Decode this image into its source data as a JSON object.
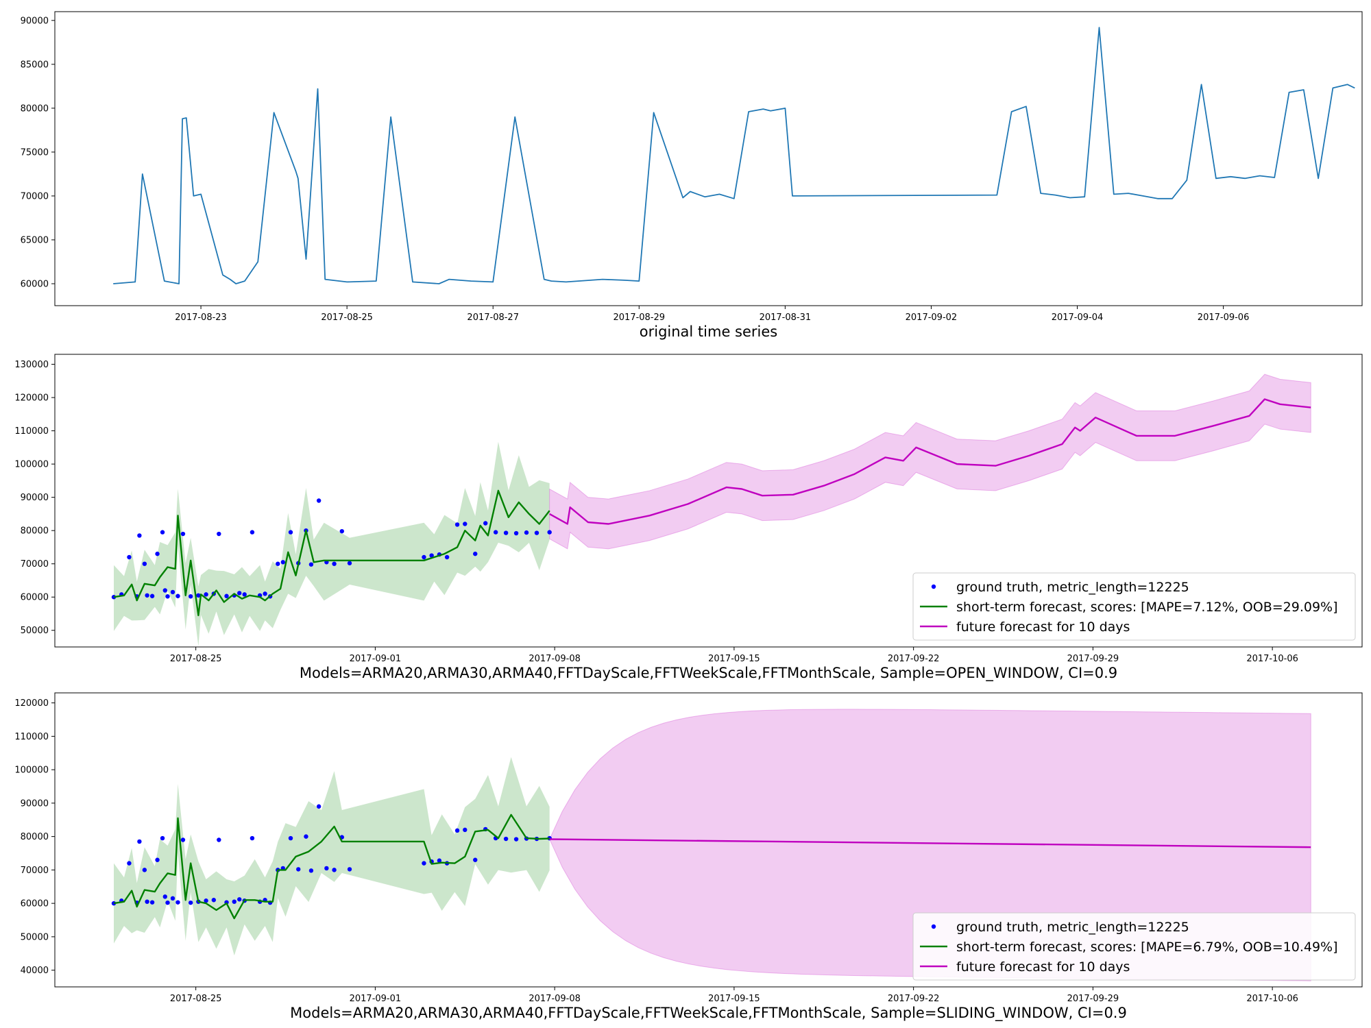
{
  "chart_data": [
    {
      "type": "line",
      "xlabel": "original time series",
      "ylabel": "",
      "ylim": [
        57500,
        91000
      ],
      "xlim": [
        "2017-08-21 00:00",
        "2017-09-07 21:36"
      ],
      "yticks": [
        60000,
        65000,
        70000,
        75000,
        80000,
        85000,
        90000
      ],
      "ytick_labels": [
        "60000",
        "65000",
        "70000",
        "75000",
        "80000",
        "85000",
        "90000"
      ],
      "xticks": [
        "2017-08-23",
        "2017-08-25",
        "2017-08-27",
        "2017-08-29",
        "2017-08-31",
        "2017-09-02",
        "2017-09-04",
        "2017-09-06"
      ],
      "series": [
        {
          "color": "#1f77b4",
          "x": [
            "2017-08-21 19:12",
            "2017-08-22 02:24",
            "2017-08-22 04:48",
            "2017-08-22 12:00",
            "2017-08-22 16:48",
            "2017-08-22 17:55",
            "2017-08-22 19:12",
            "2017-08-22 21:36",
            "2017-08-23 00:00",
            "2017-08-23 07:12",
            "2017-08-23 09:36",
            "2017-08-23 11:31",
            "2017-08-23 14:24",
            "2017-08-23 18:43",
            "2017-08-24 00:00",
            "2017-08-24 07:12",
            "2017-08-24 07:55",
            "2017-08-24 10:34",
            "2017-08-24 14:24",
            "2017-08-24 16:48",
            "2017-08-25 00:00",
            "2017-08-25 09:36",
            "2017-08-25 14:24",
            "2017-08-25 21:36",
            "2017-08-26 06:14",
            "2017-08-26 09:36",
            "2017-08-26 16:48",
            "2017-08-27 00:00",
            "2017-08-27 07:12",
            "2017-08-27 16:48",
            "2017-08-27 19:12",
            "2017-08-28 00:00",
            "2017-08-28 12:00",
            "2017-08-28 19:12",
            "2017-08-29 00:00",
            "2017-08-29 04:48",
            "2017-08-29 14:24",
            "2017-08-29 16:48",
            "2017-08-29 21:36",
            "2017-08-30 02:24",
            "2017-08-30 07:12",
            "2017-08-30 12:00",
            "2017-08-30 16:48",
            "2017-08-30 19:12",
            "2017-08-31 00:00",
            "2017-08-31 02:24",
            "2017-09-02 21:36",
            "2017-09-03 02:24",
            "2017-09-03 07:12",
            "2017-09-03 12:00",
            "2017-09-03 16:48",
            "2017-09-03 21:36",
            "2017-09-04 02:24",
            "2017-09-04 07:12",
            "2017-09-04 12:00",
            "2017-09-04 16:48",
            "2017-09-04 21:36",
            "2017-09-05 02:24",
            "2017-09-05 07:12",
            "2017-09-05 12:00",
            "2017-09-05 16:48",
            "2017-09-05 21:36",
            "2017-09-06 02:24",
            "2017-09-06 07:12",
            "2017-09-06 12:00",
            "2017-09-06 16:48",
            "2017-09-06 21:36",
            "2017-09-07 02:24",
            "2017-09-07 07:12",
            "2017-09-07 12:00",
            "2017-09-07 16:48",
            "2017-09-07 19:12"
          ],
          "y": [
            60000,
            60200,
            72500,
            60300,
            60000,
            78800,
            78900,
            70000,
            70200,
            61000,
            60500,
            60000,
            60300,
            62500,
            79500,
            72800,
            72000,
            62800,
            82200,
            60500,
            60200,
            60300,
            79000,
            60200,
            60000,
            60500,
            60300,
            60200,
            79000,
            60500,
            60300,
            60200,
            60500,
            60400,
            60300,
            79500,
            69800,
            70500,
            69900,
            70200,
            69700,
            79600,
            79900,
            79700,
            80000,
            70000,
            70100,
            79600,
            80200,
            70300,
            70100,
            69800,
            69900,
            89200,
            70200,
            70300,
            70000,
            69700,
            69700,
            71800,
            82700,
            72000,
            72200,
            72000,
            72300,
            72100,
            81800,
            82100,
            72000,
            82300,
            82700,
            82300
          ]
        }
      ]
    },
    {
      "type": "line",
      "xlabel": "Models=ARMA20,ARMA30,ARMA40,FFTDayScale,FFTWeekScale,FFTMonthScale, Sample=OPEN_WINDOW, CI=0.9",
      "ylabel": "",
      "ylim": [
        45000,
        133000
      ],
      "xlim": [
        "2017-08-19 12:00",
        "2017-10-09 12:00"
      ],
      "yticks": [
        50000,
        60000,
        70000,
        80000,
        90000,
        100000,
        110000,
        120000,
        130000
      ],
      "ytick_labels": [
        "50000",
        "60000",
        "70000",
        "80000",
        "90000",
        "100000",
        "110000",
        "120000",
        "130000"
      ],
      "xticks": [
        "2017-08-25",
        "2017-09-01",
        "2017-09-08",
        "2017-09-15",
        "2017-09-22",
        "2017-09-29",
        "2017-10-06"
      ],
      "legend": "lower right",
      "series": [
        {
          "name": "ground truth, metric_length=12225",
          "kind": "scatter",
          "color": "#0000ff",
          "x": [
            "2017-08-21 19:12",
            "2017-08-22 02:24",
            "2017-08-22 09:36",
            "2017-08-22 16:48",
            "2017-08-22 19:12",
            "2017-08-23 00:00",
            "2017-08-23 02:24",
            "2017-08-23 07:12",
            "2017-08-23 12:00",
            "2017-08-23 16:48",
            "2017-08-23 19:12",
            "2017-08-23 21:36",
            "2017-08-24 02:24",
            "2017-08-24 07:12",
            "2017-08-24 12:00",
            "2017-08-24 19:12",
            "2017-08-25 02:24",
            "2017-08-25 09:36",
            "2017-08-25 16:48",
            "2017-08-25 21:36",
            "2017-08-26 04:48",
            "2017-08-26 12:00",
            "2017-08-26 16:48",
            "2017-08-26 21:36",
            "2017-08-27 04:48",
            "2017-08-27 12:00",
            "2017-08-27 16:48",
            "2017-08-27 21:36",
            "2017-08-28 04:48",
            "2017-08-28 09:36",
            "2017-08-28 16:48",
            "2017-08-29 00:00",
            "2017-08-29 07:12",
            "2017-08-29 12:00",
            "2017-08-29 19:12",
            "2017-08-30 02:24",
            "2017-08-30 09:36",
            "2017-08-30 16:48",
            "2017-08-31 00:00",
            "2017-09-02 21:36",
            "2017-09-03 04:48",
            "2017-09-03 12:00",
            "2017-09-03 19:12",
            "2017-09-04 04:48",
            "2017-09-04 12:00",
            "2017-09-04 21:36",
            "2017-09-05 07:12",
            "2017-09-05 16:48",
            "2017-09-06 02:24",
            "2017-09-06 12:00",
            "2017-09-06 21:36",
            "2017-09-07 07:12",
            "2017-09-07 19:12"
          ],
          "y": [
            60000,
            60800,
            72000,
            60200,
            78500,
            70000,
            60500,
            60300,
            73000,
            79500,
            62000,
            60200,
            61500,
            60300,
            79000,
            60200,
            60500,
            60800,
            61000,
            79000,
            60300,
            60500,
            61200,
            60800,
            79500,
            60500,
            61000,
            60200,
            70000,
            70500,
            79500,
            70200,
            80000,
            69800,
            89000,
            70500,
            70000,
            79800,
            70200,
            72000,
            72500,
            72800,
            72000,
            81800,
            82000,
            73000,
            82200,
            79500,
            79300,
            79200,
            79400,
            79300,
            79500
          ]
        },
        {
          "name": "short-term forecast, scores: [MAPE=7.12%, OOB=29.09%]",
          "kind": "line",
          "color": "#008000",
          "x": [
            "2017-08-21 19:12",
            "2017-08-22 04:48",
            "2017-08-22 12:00",
            "2017-08-22 16:48",
            "2017-08-23 00:00",
            "2017-08-23 09:36",
            "2017-08-23 14:24",
            "2017-08-23 21:36",
            "2017-08-24 04:48",
            "2017-08-24 07:12",
            "2017-08-24 14:24",
            "2017-08-24 19:12",
            "2017-08-25 02:24",
            "2017-08-25 04:48",
            "2017-08-25 12:00",
            "2017-08-25 19:12",
            "2017-08-26 02:24",
            "2017-08-26 12:00",
            "2017-08-26 19:12",
            "2017-08-27 02:24",
            "2017-08-27 12:00",
            "2017-08-27 16:48",
            "2017-08-28 00:00",
            "2017-08-28 07:12",
            "2017-08-28 14:24",
            "2017-08-28 21:36",
            "2017-08-29 07:12",
            "2017-08-29 14:24",
            "2017-08-30 00:00",
            "2017-08-31 00:00",
            "2017-09-02 21:36",
            "2017-09-03 07:12",
            "2017-09-03 16:48",
            "2017-09-04 04:48",
            "2017-09-04 12:00",
            "2017-09-04 21:36",
            "2017-09-05 02:24",
            "2017-09-05 09:36",
            "2017-09-05 19:12",
            "2017-09-06 04:48",
            "2017-09-06 14:24",
            "2017-09-07 00:00",
            "2017-09-07 09:36",
            "2017-09-07 19:12"
          ],
          "y": [
            60000,
            60500,
            63800,
            59000,
            64000,
            63500,
            66000,
            69000,
            68500,
            84500,
            60500,
            71000,
            54500,
            60800,
            59000,
            62000,
            58500,
            61000,
            59500,
            60500,
            60000,
            59000,
            61000,
            62500,
            73500,
            66500,
            80000,
            70500,
            71000,
            71000,
            71000,
            72000,
            73000,
            75000,
            80000,
            77000,
            81500,
            78500,
            92000,
            84000,
            88500,
            85000,
            82000,
            86000
          ]
        },
        {
          "name": "future forecast for 10 days",
          "kind": "line",
          "color": "#bf00bf",
          "x": [
            "2017-09-07 19:12",
            "2017-09-08 12:00",
            "2017-09-08 14:24",
            "2017-09-09 07:12",
            "2017-09-10 02:24",
            "2017-09-11 16:48",
            "2017-09-13 04:48",
            "2017-09-14 16:48",
            "2017-09-15 07:12",
            "2017-09-16 02:24",
            "2017-09-17 07:12",
            "2017-09-18 12:00",
            "2017-09-19 16:48",
            "2017-09-20 21:36",
            "2017-09-21 14:24",
            "2017-09-22 02:24",
            "2017-09-23 16:48",
            "2017-09-25 04:48",
            "2017-09-26 12:00",
            "2017-09-27 19:12",
            "2017-09-28 07:12",
            "2017-09-28 12:00",
            "2017-09-29 02:24",
            "2017-09-30 16:48",
            "2017-10-02 04:48",
            "2017-10-03 16:48",
            "2017-10-05 02:24",
            "2017-10-05 16:48",
            "2017-10-06 07:12",
            "2017-10-07 12:00"
          ],
          "y": [
            85000,
            82000,
            87000,
            82500,
            82000,
            84500,
            88000,
            93000,
            92500,
            90500,
            90800,
            93500,
            97000,
            102000,
            101000,
            105000,
            100000,
            99500,
            102500,
            106000,
            111000,
            110000,
            114000,
            108500,
            108500,
            111500,
            114500,
            119500,
            118000,
            117000
          ]
        }
      ]
    },
    {
      "type": "line",
      "xlabel": "Models=ARMA20,ARMA30,ARMA40,FFTDayScale,FFTWeekScale,FFTMonthScale, Sample=SLIDING_WINDOW, CI=0.9",
      "ylabel": "",
      "ylim": [
        35000,
        123000
      ],
      "xlim": [
        "2017-08-19 12:00",
        "2017-10-09 12:00"
      ],
      "yticks": [
        40000,
        50000,
        60000,
        70000,
        80000,
        90000,
        100000,
        110000,
        120000
      ],
      "ytick_labels": [
        "40000",
        "50000",
        "60000",
        "70000",
        "80000",
        "90000",
        "100000",
        "110000",
        "120000"
      ],
      "xticks": [
        "2017-08-25",
        "2017-09-01",
        "2017-09-08",
        "2017-09-15",
        "2017-09-22",
        "2017-09-29",
        "2017-10-06"
      ],
      "legend": "lower right",
      "series": [
        {
          "name": "ground truth, metric_length=12225",
          "kind": "scatter",
          "color": "#0000ff",
          "x": [
            "2017-08-21 19:12",
            "2017-08-22 02:24",
            "2017-08-22 09:36",
            "2017-08-22 16:48",
            "2017-08-22 19:12",
            "2017-08-23 00:00",
            "2017-08-23 02:24",
            "2017-08-23 07:12",
            "2017-08-23 12:00",
            "2017-08-23 16:48",
            "2017-08-23 19:12",
            "2017-08-23 21:36",
            "2017-08-24 02:24",
            "2017-08-24 07:12",
            "2017-08-24 12:00",
            "2017-08-24 19:12",
            "2017-08-25 02:24",
            "2017-08-25 09:36",
            "2017-08-25 16:48",
            "2017-08-25 21:36",
            "2017-08-26 04:48",
            "2017-08-26 12:00",
            "2017-08-26 16:48",
            "2017-08-26 21:36",
            "2017-08-27 04:48",
            "2017-08-27 12:00",
            "2017-08-27 16:48",
            "2017-08-27 21:36",
            "2017-08-28 04:48",
            "2017-08-28 09:36",
            "2017-08-28 16:48",
            "2017-08-29 00:00",
            "2017-08-29 07:12",
            "2017-08-29 12:00",
            "2017-08-29 19:12",
            "2017-08-30 02:24",
            "2017-08-30 09:36",
            "2017-08-30 16:48",
            "2017-08-31 00:00",
            "2017-09-02 21:36",
            "2017-09-03 04:48",
            "2017-09-03 12:00",
            "2017-09-03 19:12",
            "2017-09-04 04:48",
            "2017-09-04 12:00",
            "2017-09-04 21:36",
            "2017-09-05 07:12",
            "2017-09-05 16:48",
            "2017-09-06 02:24",
            "2017-09-06 12:00",
            "2017-09-06 21:36",
            "2017-09-07 07:12",
            "2017-09-07 19:12"
          ],
          "y": [
            60000,
            60800,
            72000,
            60200,
            78500,
            70000,
            60500,
            60300,
            73000,
            79500,
            62000,
            60200,
            61500,
            60300,
            79000,
            60200,
            60500,
            60800,
            61000,
            79000,
            60300,
            60500,
            61200,
            60800,
            79500,
            60500,
            61000,
            60200,
            70000,
            70500,
            79500,
            70200,
            80000,
            69800,
            89000,
            70500,
            70000,
            79800,
            70200,
            72000,
            72500,
            72800,
            72000,
            81800,
            82000,
            73000,
            82200,
            79500,
            79300,
            79200,
            79400,
            79300,
            79500
          ]
        },
        {
          "name": "short-term forecast, scores: [MAPE=6.79%, OOB=10.49%]",
          "kind": "line",
          "color": "#008000",
          "x": [
            "2017-08-21 19:12",
            "2017-08-22 04:48",
            "2017-08-22 12:00",
            "2017-08-22 16:48",
            "2017-08-23 00:00",
            "2017-08-23 09:36",
            "2017-08-23 14:24",
            "2017-08-23 21:36",
            "2017-08-24 04:48",
            "2017-08-24 07:12",
            "2017-08-24 14:24",
            "2017-08-24 19:12",
            "2017-08-25 02:24",
            "2017-08-25 09:36",
            "2017-08-25 19:12",
            "2017-08-26 04:48",
            "2017-08-26 12:00",
            "2017-08-26 21:36",
            "2017-08-27 07:12",
            "2017-08-27 16:48",
            "2017-08-28 00:00",
            "2017-08-28 04:48",
            "2017-08-28 12:00",
            "2017-08-28 21:36",
            "2017-08-29 09:36",
            "2017-08-29 21:36",
            "2017-08-30 09:36",
            "2017-08-30 16:48",
            "2017-09-02 21:36",
            "2017-09-03 04:48",
            "2017-09-03 14:24",
            "2017-09-04 02:24",
            "2017-09-04 12:00",
            "2017-09-04 21:36",
            "2017-09-05 09:36",
            "2017-09-05 19:12",
            "2017-09-06 07:12",
            "2017-09-06 21:36",
            "2017-09-07 09:36",
            "2017-09-07 19:12"
          ],
          "y": [
            60000,
            60500,
            63800,
            59000,
            64000,
            63500,
            66000,
            69000,
            68500,
            85500,
            61000,
            72000,
            60500,
            60000,
            58000,
            60000,
            55500,
            61000,
            61000,
            60500,
            60500,
            70000,
            70000,
            74000,
            75500,
            78500,
            83000,
            78500,
            78500,
            71800,
            72200,
            72000,
            74000,
            81500,
            82000,
            79500,
            86500,
            79500,
            79300,
            79400
          ]
        },
        {
          "name": "future forecast for 10 days",
          "kind": "line",
          "color": "#bf00bf",
          "x": [
            "2017-09-07 19:12",
            "2017-10-07 12:00"
          ],
          "y": [
            79200,
            76800
          ]
        }
      ]
    }
  ]
}
